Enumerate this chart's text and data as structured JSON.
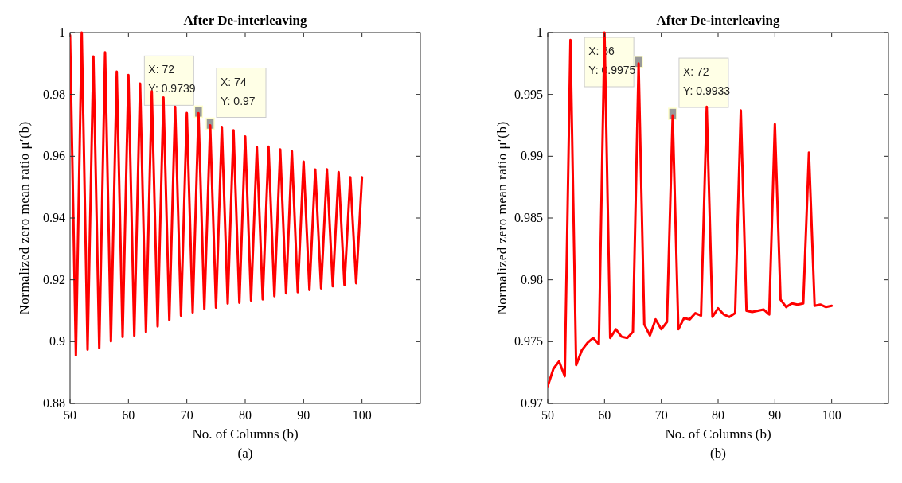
{
  "chart_data": [
    {
      "type": "line",
      "title": "After De-interleaving",
      "xlabel": "No. of Columns (b)",
      "ylabel": "Normalized zero mean ratio μ′(b)",
      "xlim": [
        50,
        110
      ],
      "ylim": [
        0.88,
        1
      ],
      "xticks": [
        50,
        60,
        70,
        80,
        90,
        100
      ],
      "yticks": [
        0.88,
        0.9,
        0.92,
        0.94,
        0.96,
        0.98,
        1
      ],
      "line_style": "solid",
      "marker": "none",
      "x": [
        50,
        51,
        52,
        53,
        54,
        55,
        56,
        57,
        58,
        59,
        60,
        61,
        62,
        63,
        64,
        65,
        66,
        67,
        68,
        69,
        70,
        71,
        72,
        73,
        74,
        75,
        76,
        77,
        78,
        79,
        80,
        81,
        82,
        83,
        84,
        85,
        86,
        87,
        88,
        89,
        90,
        91,
        92,
        93,
        94,
        95,
        96,
        97,
        98,
        99,
        100
      ],
      "series": [
        {
          "color": "#ff0000",
          "values": [
            0.9991,
            0.8955,
            1.0,
            0.8974,
            0.9923,
            0.8979,
            0.9936,
            0.9001,
            0.9874,
            0.9015,
            0.9863,
            0.9019,
            0.9835,
            0.9031,
            0.981,
            0.9049,
            0.979,
            0.907,
            0.976,
            0.9084,
            0.974,
            0.9094,
            0.9739,
            0.9106,
            0.97,
            0.911,
            0.9695,
            0.9123,
            0.9684,
            0.9126,
            0.9664,
            0.9133,
            0.963,
            0.9137,
            0.9631,
            0.9147,
            0.9622,
            0.9156,
            0.9616,
            0.916,
            0.9583,
            0.9167,
            0.9557,
            0.9172,
            0.9558,
            0.9179,
            0.9549,
            0.9183,
            0.9532,
            0.9189,
            0.9532
          ]
        }
      ],
      "annotations": [
        {
          "text": "X: 72\nY: 0.9739",
          "x": 72,
          "y": 0.9739
        },
        {
          "text": "X: 74\nY: 0.97",
          "x": 74,
          "y": 0.97
        },
        "(a)"
      ]
    },
    {
      "type": "line",
      "title": "After De-interleaving",
      "xlabel": "No. of Columns (b)",
      "ylabel": "Normalized zero mean ratio μ′(b)",
      "xlim": [
        50,
        110
      ],
      "ylim": [
        0.97,
        1
      ],
      "xticks": [
        50,
        60,
        70,
        80,
        90,
        100
      ],
      "yticks": [
        0.97,
        0.975,
        0.98,
        0.985,
        0.99,
        0.995,
        1
      ],
      "line_style": "solid",
      "marker": "none",
      "x": [
        50,
        51,
        52,
        53,
        54,
        55,
        56,
        57,
        58,
        59,
        60,
        61,
        62,
        63,
        64,
        65,
        66,
        67,
        68,
        69,
        70,
        71,
        72,
        73,
        74,
        75,
        76,
        77,
        78,
        79,
        80,
        81,
        82,
        83,
        84,
        85,
        86,
        87,
        88,
        89,
        90,
        91,
        92,
        93,
        94,
        95,
        96,
        97,
        98,
        99,
        100
      ],
      "series": [
        {
          "color": "#ff0000",
          "values": [
            0.9714,
            0.9728,
            0.9734,
            0.9722,
            0.9994,
            0.9731,
            0.9743,
            0.9749,
            0.9753,
            0.9748,
            1.0,
            0.9753,
            0.976,
            0.9754,
            0.9753,
            0.9758,
            0.9975,
            0.9764,
            0.9755,
            0.9768,
            0.976,
            0.9766,
            0.9933,
            0.976,
            0.9769,
            0.9768,
            0.9773,
            0.9771,
            0.994,
            0.977,
            0.9777,
            0.9772,
            0.977,
            0.9773,
            0.9937,
            0.9775,
            0.9774,
            0.9775,
            0.9776,
            0.9772,
            0.9926,
            0.9784,
            0.9778,
            0.9781,
            0.978,
            0.9781,
            0.9903,
            0.9779,
            0.978,
            0.9778,
            0.9779
          ]
        }
      ],
      "annotations": [
        {
          "text": "X: 66\nY: 0.9975",
          "x": 66,
          "y": 0.9975
        },
        {
          "text": "X: 72\nY: 0.9933",
          "x": 72,
          "y": 0.9933
        },
        "(b)"
      ]
    }
  ]
}
